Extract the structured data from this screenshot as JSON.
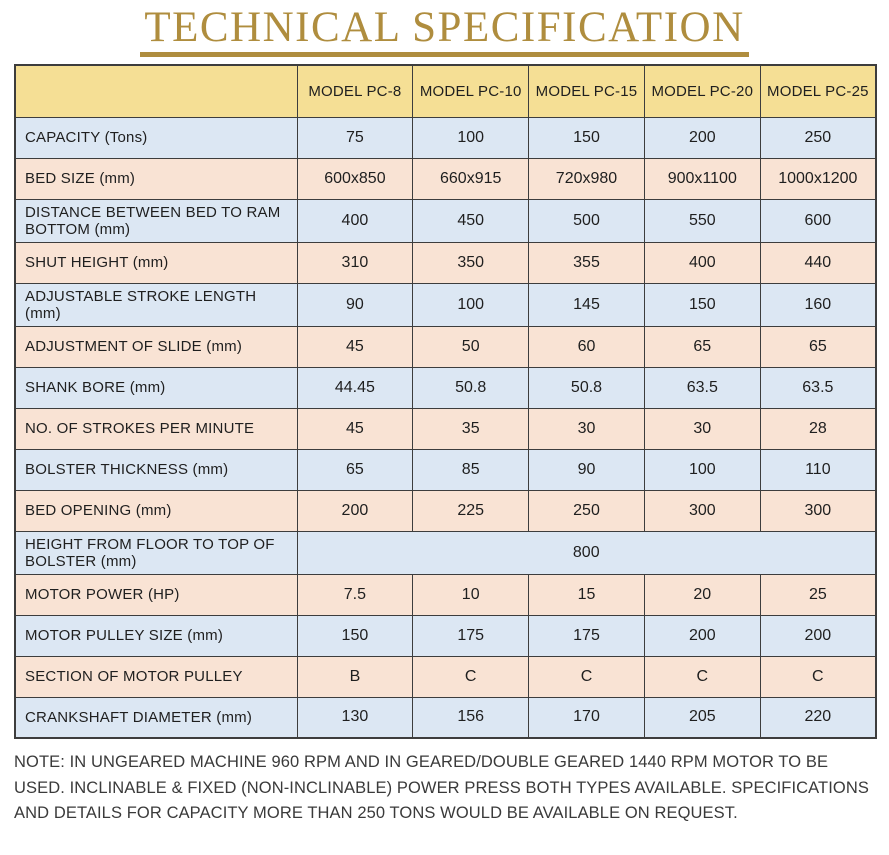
{
  "page": {
    "title": "TECHNICAL SPECIFICATION",
    "note": "NOTE: IN UNGEARED MACHINE 960 RPM AND IN GEARED/DOUBLE GEARED 1440 RPM MOTOR TO BE USED. INCLINABLE & FIXED (NON-INCLINABLE) POWER PRESS BOTH TYPES AVAILABLE. SPECIFICATIONS AND DETAILS FOR CAPACITY MORE THAN 250 TONS WOULD BE AVAILABLE ON REQUEST."
  },
  "colors": {
    "title_gold": "#af8d3e",
    "header_bg": "#f5df95",
    "row_blue": "#dce7f3",
    "row_peach": "#f9e3d4",
    "border": "#3d3d3d",
    "text": "#1f1f1f"
  },
  "table": {
    "corner_label": "",
    "columns": [
      "MODEL PC-8",
      "MODEL PC-10",
      "MODEL PC-15",
      "MODEL PC-20",
      "MODEL PC-25"
    ],
    "rows": [
      {
        "label": "CAPACITY (Tons)",
        "values": [
          "75",
          "100",
          "150",
          "200",
          "250"
        ]
      },
      {
        "label": "BED SIZE (mm)",
        "values": [
          "600x850",
          "660x915",
          "720x980",
          "900x1100",
          "1000x1200"
        ]
      },
      {
        "label": "DISTANCE BETWEEN BED TO RAM BOTTOM (mm)",
        "values": [
          "400",
          "450",
          "500",
          "550",
          "600"
        ]
      },
      {
        "label": "SHUT HEIGHT (mm)",
        "values": [
          "310",
          "350",
          "355",
          "400",
          "440"
        ]
      },
      {
        "label": "ADJUSTABLE STROKE LENGTH (mm)",
        "values": [
          "90",
          "100",
          "145",
          "150",
          "160"
        ]
      },
      {
        "label": "ADJUSTMENT OF SLIDE (mm)",
        "values": [
          "45",
          "50",
          "60",
          "65",
          "65"
        ]
      },
      {
        "label": "SHANK BORE (mm)",
        "values": [
          "44.45",
          "50.8",
          "50.8",
          "63.5",
          "63.5"
        ]
      },
      {
        "label": "NO. OF STROKES PER MINUTE",
        "values": [
          "45",
          "35",
          "30",
          "30",
          "28"
        ]
      },
      {
        "label": "BOLSTER THICKNESS (mm)",
        "values": [
          "65",
          "85",
          "90",
          "100",
          "110"
        ]
      },
      {
        "label": "BED OPENING (mm)",
        "values": [
          "200",
          "225",
          "250",
          "300",
          "300"
        ]
      },
      {
        "label": "HEIGHT FROM FLOOR TO TOP OF BOLSTER (mm)",
        "values": [
          "800"
        ],
        "colspan": 5
      },
      {
        "label": "MOTOR POWER (HP)",
        "values": [
          "7.5",
          "10",
          "15",
          "20",
          "25"
        ]
      },
      {
        "label": "MOTOR PULLEY SIZE (mm)",
        "values": [
          "150",
          "175",
          "175",
          "200",
          "200"
        ]
      },
      {
        "label": "SECTION OF MOTOR PULLEY",
        "values": [
          "B",
          "C",
          "C",
          "C",
          "C"
        ]
      },
      {
        "label": "CRANKSHAFT DIAMETER (mm)",
        "values": [
          "130",
          "156",
          "170",
          "205",
          "220"
        ]
      }
    ]
  }
}
